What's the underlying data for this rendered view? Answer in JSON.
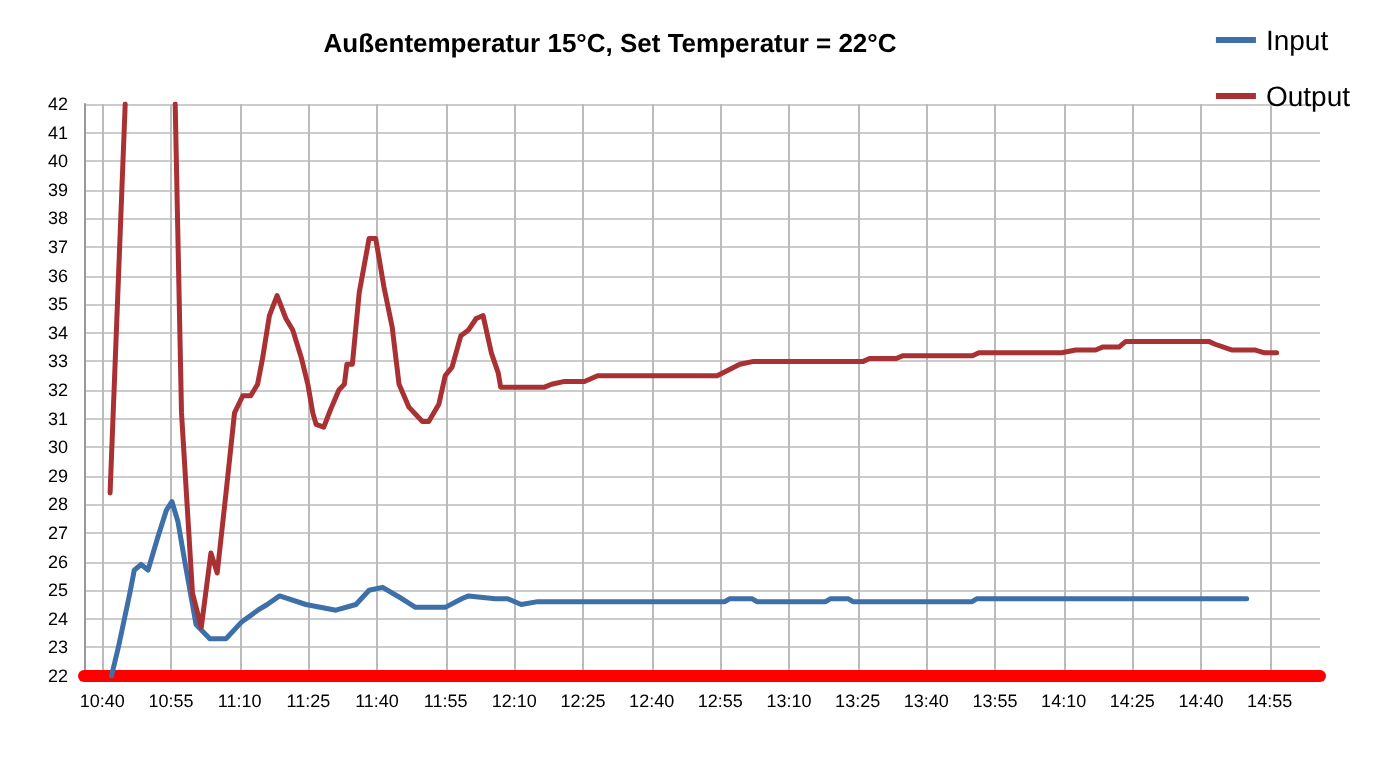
{
  "chart_data": {
    "type": "line",
    "title": "Außentemperatur 15°C, Set Temperatur = 22°C",
    "xlim": [
      10.6,
      15.1
    ],
    "xticks": [
      {
        "value": 10.6667,
        "label": "10:40"
      },
      {
        "value": 10.9167,
        "label": "10:55"
      },
      {
        "value": 11.1667,
        "label": "11:10"
      },
      {
        "value": 11.4167,
        "label": "11:25"
      },
      {
        "value": 11.6667,
        "label": "11:40"
      },
      {
        "value": 11.9167,
        "label": "11:55"
      },
      {
        "value": 12.1667,
        "label": "12:10"
      },
      {
        "value": 12.4167,
        "label": "12:25"
      },
      {
        "value": 12.6667,
        "label": "12:40"
      },
      {
        "value": 12.9167,
        "label": "12:55"
      },
      {
        "value": 13.1667,
        "label": "13:10"
      },
      {
        "value": 13.4167,
        "label": "13:25"
      },
      {
        "value": 13.6667,
        "label": "13:40"
      },
      {
        "value": 13.9167,
        "label": "13:55"
      },
      {
        "value": 14.1667,
        "label": "14:10"
      },
      {
        "value": 14.4167,
        "label": "14:25"
      },
      {
        "value": 14.6667,
        "label": "14:40"
      },
      {
        "value": 14.9167,
        "label": "14:55"
      }
    ],
    "ylim": [
      22,
      42
    ],
    "yticks": [
      22,
      23,
      24,
      25,
      26,
      27,
      28,
      29,
      30,
      31,
      32,
      33,
      34,
      35,
      36,
      37,
      38,
      39,
      40,
      41,
      42
    ],
    "grid": true,
    "legend": "top right",
    "marker": "none",
    "line_style": "solid",
    "series": [
      {
        "name": "Input",
        "color": "#3d6fa8",
        "x": [
          10.7,
          10.725,
          10.767,
          10.783,
          10.808,
          10.833,
          10.867,
          10.9,
          10.92,
          10.942,
          10.967,
          11.008,
          11.058,
          11.117,
          11.175,
          11.233,
          11.267,
          11.312,
          11.408,
          11.517,
          11.59,
          11.638,
          11.687,
          11.758,
          11.807,
          11.915,
          11.975,
          12.0,
          12.097,
          12.143,
          12.192,
          12.252,
          12.933,
          12.95,
          13.033,
          13.05,
          13.3,
          13.317,
          13.383,
          13.4,
          13.833,
          13.85,
          14.833
        ],
        "values": [
          22.0,
          23.0,
          24.9,
          25.7,
          25.9,
          25.7,
          26.8,
          27.8,
          28.1,
          27.4,
          26.0,
          23.8,
          23.3,
          23.3,
          23.9,
          24.3,
          24.5,
          24.8,
          24.5,
          24.3,
          24.5,
          25.0,
          25.1,
          24.7,
          24.4,
          24.4,
          24.7,
          24.8,
          24.7,
          24.7,
          24.5,
          24.6,
          24.6,
          24.7,
          24.7,
          24.6,
          24.6,
          24.7,
          24.7,
          24.6,
          24.6,
          24.7,
          24.7
        ]
      },
      {
        "name": "Output",
        "color": "#a93033",
        "x": [
          10.695,
          10.75,
          10.84,
          10.932,
          10.955,
          10.995,
          11.027,
          11.062,
          11.085,
          11.117,
          11.148,
          11.178,
          11.207,
          11.232,
          11.25,
          11.275,
          11.303,
          11.335,
          11.36,
          11.392,
          11.415,
          11.433,
          11.445,
          11.473,
          11.497,
          11.528,
          11.548,
          11.557,
          11.577,
          11.602,
          11.638,
          11.662,
          11.692,
          11.722,
          11.747,
          11.783,
          11.832,
          11.855,
          11.892,
          11.915,
          11.94,
          11.972,
          12.0,
          12.028,
          12.053,
          12.083,
          12.108,
          12.117,
          12.277,
          12.302,
          12.35,
          12.422,
          12.47,
          12.905,
          12.988,
          13.038,
          13.437,
          13.46,
          13.557,
          13.582,
          13.835,
          13.858,
          14.16,
          14.21,
          14.283,
          14.308,
          14.368,
          14.393,
          14.695,
          14.718,
          14.778,
          14.862,
          14.898,
          14.942
        ],
        "values": [
          28.4,
          42,
          null,
          42,
          31.2,
          24.9,
          23.7,
          26.3,
          25.6,
          28.4,
          31.2,
          31.8,
          31.8,
          32.2,
          33.1,
          34.6,
          35.3,
          34.5,
          34.1,
          33.1,
          32.2,
          31.2,
          30.8,
          30.7,
          31.3,
          32.0,
          32.2,
          32.9,
          32.9,
          35.4,
          37.3,
          37.3,
          35.6,
          34.2,
          32.2,
          31.4,
          30.9,
          30.9,
          31.5,
          32.5,
          32.8,
          33.9,
          34.1,
          34.5,
          34.6,
          33.3,
          32.6,
          32.1,
          32.1,
          32.2,
          32.3,
          32.3,
          32.5,
          32.5,
          32.9,
          33.0,
          33.0,
          33.1,
          33.1,
          33.2,
          33.2,
          33.3,
          33.3,
          33.4,
          33.4,
          33.5,
          33.5,
          33.7,
          33.7,
          33.6,
          33.4,
          33.4,
          33.3,
          33.3
        ]
      }
    ]
  }
}
